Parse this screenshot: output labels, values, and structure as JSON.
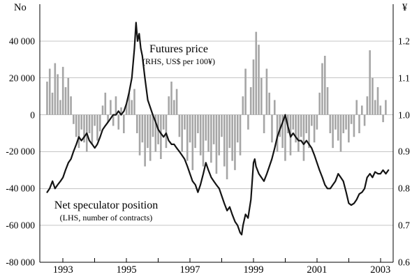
{
  "chart_data": {
    "type": "bar+line",
    "left_axis": {
      "unit": "No",
      "min": -80000,
      "max": 60000,
      "tick_step": 20000,
      "tick_labels": [
        "40 000",
        "20 000",
        "0",
        "-20 000",
        "-40 000",
        "-60 000",
        "-80 000"
      ]
    },
    "right_axis": {
      "unit": "¥",
      "min": 0.6,
      "max": 1.3,
      "tick_step": 0.1,
      "tick_labels": [
        "1.2",
        "1.1",
        "1.0",
        "0.9",
        "0.8",
        "0.7",
        "0.6"
      ]
    },
    "x_axis": {
      "min": 1992.27,
      "max": 2003.4,
      "tick_years": [
        1993,
        1994,
        1995,
        1996,
        1997,
        1998,
        1999,
        2000,
        2001,
        2002,
        2003
      ],
      "label_years": [
        "1993",
        "1995",
        "1997",
        "1999",
        "2001",
        "2003"
      ]
    },
    "annotations": [
      {
        "title": "Futures price",
        "sub": "(RHS, US$ per 100¥)"
      },
      {
        "title": "Net speculator position",
        "sub": "(LHS, number of contracts)"
      }
    ],
    "colors": {
      "bar": "#a6a6a6",
      "line": "#141414",
      "grid": "#c4c4c4",
      "axis": "#000000"
    },
    "series": [
      {
        "name": "Net speculator position",
        "type": "bar",
        "axis": "left",
        "start": 1992.5,
        "step": 0.083333,
        "values": [
          18000,
          25000,
          12000,
          28000,
          22000,
          8000,
          26000,
          15000,
          20000,
          10000,
          -5000,
          -12000,
          -18000,
          -8000,
          -15000,
          -20000,
          -10000,
          -16000,
          -6000,
          -14000,
          -9000,
          5000,
          12000,
          -4000,
          8000,
          -6000,
          10000,
          -8000,
          4000,
          -10000,
          6000,
          12000,
          8000,
          14000,
          -10000,
          -22000,
          -15000,
          -28000,
          -18000,
          -25000,
          -12000,
          -20000,
          -16000,
          -24000,
          -8000,
          -18000,
          10000,
          18000,
          8000,
          14000,
          -12000,
          -20000,
          -8000,
          -25000,
          -15000,
          -30000,
          -18000,
          -10000,
          -22000,
          -28000,
          -14000,
          -20000,
          -26000,
          -16000,
          -32000,
          -22000,
          -12000,
          -28000,
          -35000,
          -18000,
          -25000,
          -30000,
          -15000,
          -22000,
          10000,
          25000,
          -8000,
          15000,
          30000,
          45000,
          38000,
          20000,
          -10000,
          25000,
          12000,
          -15000,
          8000,
          -20000,
          -12000,
          -18000,
          -25000,
          -10000,
          -22000,
          -8000,
          -15000,
          -20000,
          -12000,
          -25000,
          -10000,
          -18000,
          -6000,
          -15000,
          -8000,
          12000,
          28000,
          32000,
          15000,
          -10000,
          -18000,
          -8000,
          -14000,
          -20000,
          -10000,
          -8000,
          -15000,
          -5000,
          -12000,
          8000,
          -10000,
          5000,
          -6000,
          10000,
          35000,
          20000,
          8000,
          15000,
          5000,
          -4000,
          8000
        ]
      },
      {
        "name": "Futures price",
        "type": "line",
        "axis": "right",
        "points": [
          [
            1992.5,
            0.79
          ],
          [
            1992.58,
            0.8
          ],
          [
            1992.67,
            0.82
          ],
          [
            1992.75,
            0.8
          ],
          [
            1992.83,
            0.81
          ],
          [
            1992.92,
            0.82
          ],
          [
            1993.0,
            0.83
          ],
          [
            1993.08,
            0.85
          ],
          [
            1993.17,
            0.87
          ],
          [
            1993.25,
            0.88
          ],
          [
            1993.33,
            0.9
          ],
          [
            1993.42,
            0.92
          ],
          [
            1993.5,
            0.94
          ],
          [
            1993.58,
            0.93
          ],
          [
            1993.67,
            0.94
          ],
          [
            1993.75,
            0.95
          ],
          [
            1993.83,
            0.93
          ],
          [
            1993.92,
            0.92
          ],
          [
            1994.0,
            0.91
          ],
          [
            1994.08,
            0.92
          ],
          [
            1994.17,
            0.94
          ],
          [
            1994.25,
            0.96
          ],
          [
            1994.33,
            0.97
          ],
          [
            1994.42,
            0.98
          ],
          [
            1994.5,
            0.99
          ],
          [
            1994.58,
            1.0
          ],
          [
            1994.67,
            1.0
          ],
          [
            1994.75,
            1.01
          ],
          [
            1994.83,
            1.0
          ],
          [
            1994.92,
            1.01
          ],
          [
            1995.0,
            1.03
          ],
          [
            1995.08,
            1.06
          ],
          [
            1995.17,
            1.1
          ],
          [
            1995.25,
            1.18
          ],
          [
            1995.3,
            1.25
          ],
          [
            1995.35,
            1.2
          ],
          [
            1995.4,
            1.22
          ],
          [
            1995.45,
            1.18
          ],
          [
            1995.5,
            1.16
          ],
          [
            1995.58,
            1.1
          ],
          [
            1995.67,
            1.04
          ],
          [
            1995.75,
            1.02
          ],
          [
            1995.83,
            1.0
          ],
          [
            1995.92,
            0.98
          ],
          [
            1996.0,
            0.96
          ],
          [
            1996.08,
            0.95
          ],
          [
            1996.17,
            0.94
          ],
          [
            1996.25,
            0.95
          ],
          [
            1996.33,
            0.93
          ],
          [
            1996.42,
            0.92
          ],
          [
            1996.5,
            0.92
          ],
          [
            1996.58,
            0.91
          ],
          [
            1996.67,
            0.9
          ],
          [
            1996.75,
            0.89
          ],
          [
            1996.83,
            0.88
          ],
          [
            1996.92,
            0.86
          ],
          [
            1997.0,
            0.84
          ],
          [
            1997.08,
            0.82
          ],
          [
            1997.17,
            0.81
          ],
          [
            1997.25,
            0.79
          ],
          [
            1997.33,
            0.81
          ],
          [
            1997.42,
            0.84
          ],
          [
            1997.5,
            0.87
          ],
          [
            1997.58,
            0.85
          ],
          [
            1997.67,
            0.83
          ],
          [
            1997.75,
            0.82
          ],
          [
            1997.83,
            0.81
          ],
          [
            1997.92,
            0.8
          ],
          [
            1998.0,
            0.78
          ],
          [
            1998.08,
            0.76
          ],
          [
            1998.17,
            0.74
          ],
          [
            1998.25,
            0.75
          ],
          [
            1998.33,
            0.73
          ],
          [
            1998.42,
            0.71
          ],
          [
            1998.5,
            0.7
          ],
          [
            1998.58,
            0.68
          ],
          [
            1998.63,
            0.675
          ],
          [
            1998.67,
            0.7
          ],
          [
            1998.75,
            0.73
          ],
          [
            1998.83,
            0.72
          ],
          [
            1998.92,
            0.77
          ],
          [
            1999.0,
            0.87
          ],
          [
            1999.04,
            0.88
          ],
          [
            1999.08,
            0.86
          ],
          [
            1999.17,
            0.84
          ],
          [
            1999.25,
            0.83
          ],
          [
            1999.33,
            0.82
          ],
          [
            1999.42,
            0.84
          ],
          [
            1999.5,
            0.86
          ],
          [
            1999.58,
            0.88
          ],
          [
            1999.67,
            0.91
          ],
          [
            1999.75,
            0.94
          ],
          [
            1999.83,
            0.96
          ],
          [
            1999.92,
            0.98
          ],
          [
            2000.0,
            1.0
          ],
          [
            2000.08,
            0.97
          ],
          [
            2000.17,
            0.94
          ],
          [
            2000.25,
            0.95
          ],
          [
            2000.33,
            0.94
          ],
          [
            2000.42,
            0.93
          ],
          [
            2000.5,
            0.93
          ],
          [
            2000.58,
            0.92
          ],
          [
            2000.67,
            0.93
          ],
          [
            2000.75,
            0.92
          ],
          [
            2000.83,
            0.91
          ],
          [
            2000.92,
            0.89
          ],
          [
            2001.0,
            0.87
          ],
          [
            2001.08,
            0.85
          ],
          [
            2001.17,
            0.83
          ],
          [
            2001.25,
            0.81
          ],
          [
            2001.33,
            0.8
          ],
          [
            2001.42,
            0.8
          ],
          [
            2001.5,
            0.81
          ],
          [
            2001.58,
            0.82
          ],
          [
            2001.67,
            0.84
          ],
          [
            2001.75,
            0.83
          ],
          [
            2001.83,
            0.82
          ],
          [
            2001.92,
            0.79
          ],
          [
            2002.0,
            0.76
          ],
          [
            2002.08,
            0.755
          ],
          [
            2002.17,
            0.76
          ],
          [
            2002.25,
            0.77
          ],
          [
            2002.33,
            0.785
          ],
          [
            2002.42,
            0.79
          ],
          [
            2002.5,
            0.8
          ],
          [
            2002.58,
            0.83
          ],
          [
            2002.67,
            0.84
          ],
          [
            2002.75,
            0.83
          ],
          [
            2002.83,
            0.845
          ],
          [
            2002.92,
            0.84
          ],
          [
            2003.0,
            0.84
          ],
          [
            2003.08,
            0.85
          ],
          [
            2003.17,
            0.84
          ],
          [
            2003.25,
            0.85
          ]
        ]
      }
    ]
  }
}
